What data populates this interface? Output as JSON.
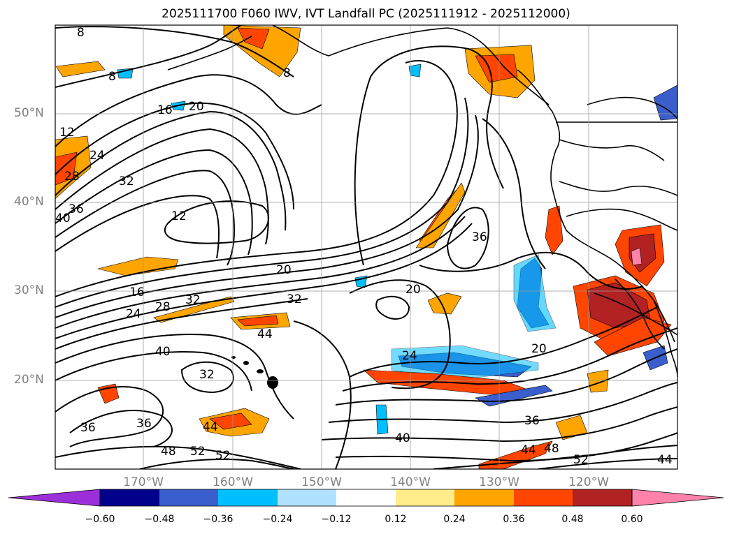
{
  "title": "2025111700 F060 IWV, IVT Landfall PC (2025111912 - 2025112000)",
  "latitude_labels": [
    "50°N",
    "40°N",
    "30°N",
    "20°N"
  ],
  "longitude_labels": [
    "170°W",
    "160°W",
    "150°W",
    "140°W",
    "130°W",
    "120°W"
  ],
  "colorbar": {
    "ticks": [
      "−0.60",
      "−0.48",
      "−0.36",
      "−0.24",
      "−0.12",
      "0.12",
      "0.24",
      "0.36",
      "0.48",
      "0.60"
    ],
    "colors": [
      "#9b30d9",
      "#00008b",
      "#3a5fcd",
      "#00bfff",
      "#b0e2ff",
      "#ffffff",
      "#ffec8b",
      "#ffa500",
      "#ff4500",
      "#b22222",
      "#ff82ab"
    ]
  },
  "contour_labels": [
    "8",
    "8",
    "8",
    "12",
    "12",
    "16",
    "16",
    "20",
    "20",
    "20",
    "20",
    "24",
    "24",
    "24",
    "28",
    "28",
    "32",
    "32",
    "32",
    "32",
    "36",
    "36",
    "36",
    "36",
    "36",
    "40",
    "40",
    "40",
    "44",
    "44",
    "44",
    "44",
    "48",
    "48",
    "52",
    "52",
    "52"
  ]
}
